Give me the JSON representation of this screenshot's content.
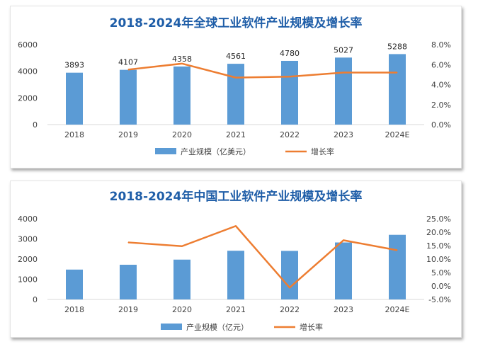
{
  "chart_data": [
    {
      "type": "bar",
      "title": "2018-2024年全球工业软件产业规模及增长率",
      "categories": [
        "2018",
        "2019",
        "2020",
        "2021",
        "2022",
        "2023",
        "2024E"
      ],
      "series": [
        {
          "name": "产业规模（亿美元）",
          "type": "bar",
          "axis": "left",
          "values": [
            3893,
            4107,
            4358,
            4561,
            4780,
            5027,
            5288
          ],
          "data_labels": [
            "3893",
            "4107",
            "4358",
            "4561",
            "4780",
            "5027",
            "5288"
          ]
        },
        {
          "name": "增长率",
          "type": "line",
          "axis": "right",
          "values": [
            null,
            5.5,
            6.1,
            4.7,
            4.8,
            5.2,
            5.2
          ]
        }
      ],
      "ylim": [
        0,
        6000
      ],
      "yticks": [
        "0",
        "2000",
        "4000",
        "6000"
      ],
      "y2lim": [
        0,
        8
      ],
      "y2ticks": [
        "0.0%",
        "2.0%",
        "4.0%",
        "6.0%",
        "8.0%"
      ],
      "grid": false,
      "legend": "bottom",
      "colors": {
        "bar": "#5b9bd5",
        "line": "#ed7d31",
        "title": "#1f5ea8"
      }
    },
    {
      "type": "bar",
      "title": "2018-2024年中国工业软件产业规模及增长率",
      "categories": [
        "2018",
        "2019",
        "2020",
        "2021",
        "2022",
        "2023",
        "2024E"
      ],
      "series": [
        {
          "name": "产业规模（亿元）",
          "type": "bar",
          "axis": "left",
          "values": [
            1480,
            1720,
            1974,
            2414,
            2407,
            2824,
            3203
          ]
        },
        {
          "name": "增长率",
          "type": "line",
          "axis": "right",
          "values": [
            null,
            16.2,
            14.8,
            22.3,
            -0.6,
            17.0,
            13.3
          ]
        }
      ],
      "ylim": [
        0,
        4000
      ],
      "yticks": [
        "0",
        "1000",
        "2000",
        "3000",
        "4000"
      ],
      "y2lim": [
        -5,
        25
      ],
      "y2ticks": [
        "-5.0%",
        "0.0%",
        "5.0%",
        "10.0%",
        "15.0%",
        "20.0%",
        "25.0%"
      ],
      "grid": false,
      "legend": "bottom",
      "colors": {
        "bar": "#5b9bd5",
        "line": "#ed7d31",
        "title": "#1f5ea8"
      }
    }
  ]
}
